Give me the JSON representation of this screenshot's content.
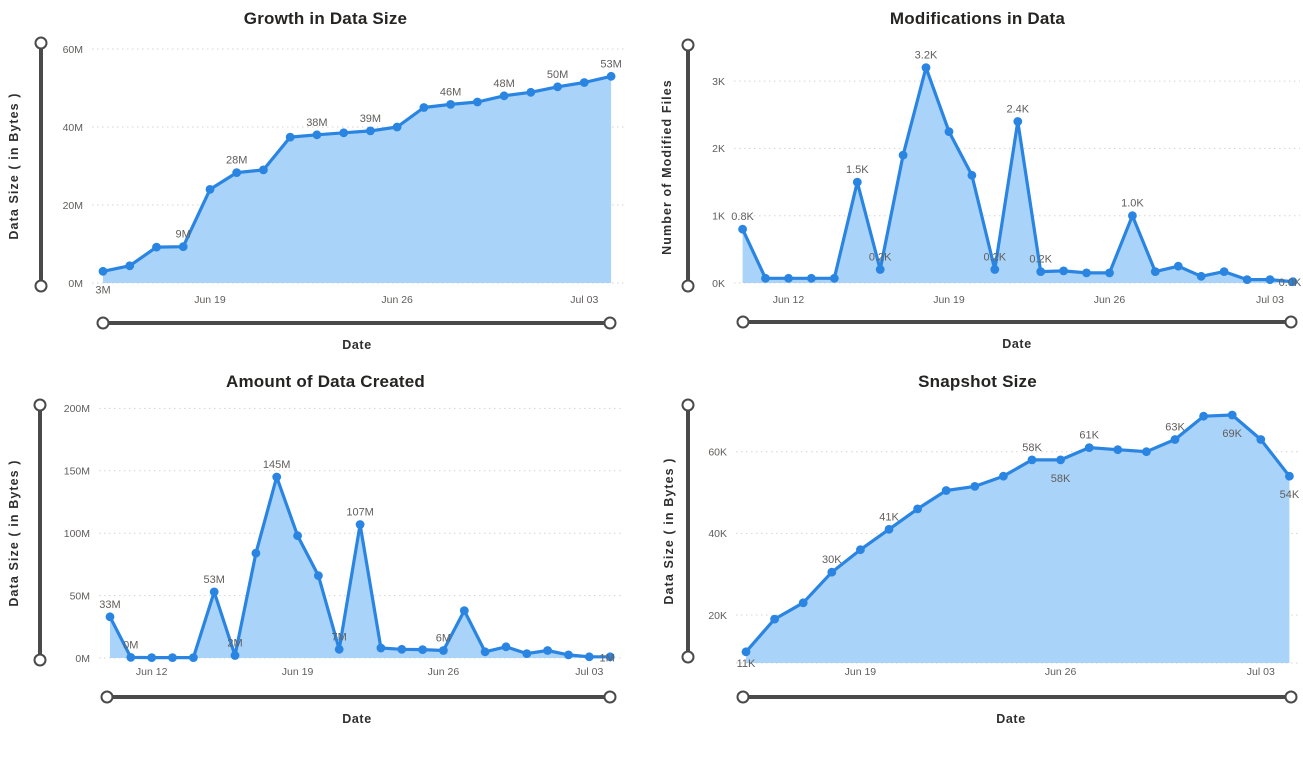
{
  "colors": {
    "line": "#2a85e2",
    "area_fill": "#a9d3f8",
    "marker": "#2a85e2",
    "grid": "#d6d4d2",
    "tick_label": "#605e5c",
    "data_label": "#605e5c",
    "title": "#252423",
    "axis_title": "#2f2e2d",
    "slider": "#4a4a4a",
    "background": "#ffffff"
  },
  "chart_data": [
    {
      "type": "area",
      "title": "Growth in Data Size",
      "xlabel": "Date",
      "ylabel": "Data Size ( in Bytes )",
      "unit": "M",
      "ylim": [
        0,
        60
      ],
      "grid": true,
      "legend": false,
      "x": [
        "Jun 15",
        "Jun 16",
        "Jun 17",
        "Jun 18",
        "Jun 19",
        "Jun 20",
        "Jun 21",
        "Jun 22",
        "Jun 23",
        "Jun 24",
        "Jun 25",
        "Jun 26",
        "Jun 27",
        "Jun 28",
        "Jun 29",
        "Jun 30",
        "Jul 01",
        "Jul 02",
        "Jul 03",
        "Jul 04"
      ],
      "values": [
        3,
        4.4,
        9.2,
        9.3,
        24,
        28.3,
        29,
        37.4,
        38,
        38.5,
        39,
        40,
        45,
        45.8,
        46.4,
        48,
        48.9,
        50.3,
        51.4,
        53
      ],
      "y_ticks": [
        {
          "v": 0,
          "label": "0M"
        },
        {
          "v": 20,
          "label": "20M"
        },
        {
          "v": 40,
          "label": "40M"
        },
        {
          "v": 60,
          "label": "60M"
        }
      ],
      "x_ticks": [
        {
          "i": 4,
          "label": "Jun 19"
        },
        {
          "i": 11,
          "label": "Jun 26"
        },
        {
          "i": 18,
          "label": "Jul 03"
        }
      ],
      "point_labels": [
        {
          "i": 0,
          "text": "3M",
          "pos": "below"
        },
        {
          "i": 3,
          "text": "9M",
          "pos": "above"
        },
        {
          "i": 5,
          "text": "28M",
          "pos": "above"
        },
        {
          "i": 8,
          "text": "38M",
          "pos": "above"
        },
        {
          "i": 10,
          "text": "39M",
          "pos": "above"
        },
        {
          "i": 13,
          "text": "46M",
          "pos": "above"
        },
        {
          "i": 15,
          "text": "48M",
          "pos": "above"
        },
        {
          "i": 17,
          "text": "50M",
          "pos": "above"
        },
        {
          "i": 19,
          "text": "53M",
          "pos": "above"
        }
      ]
    },
    {
      "type": "area",
      "title": "Modifications in Data",
      "xlabel": "Date",
      "ylabel": "Number of Modified Files",
      "unit": "K",
      "ylim": [
        0,
        3.2
      ],
      "grid": true,
      "legend": false,
      "x": [
        "Jun 10",
        "Jun 11",
        "Jun 12",
        "Jun 13",
        "Jun 14",
        "Jun 15",
        "Jun 16",
        "Jun 17",
        "Jun 18",
        "Jun 19",
        "Jun 20",
        "Jun 21",
        "Jun 22",
        "Jun 23",
        "Jun 24",
        "Jun 25",
        "Jun 26",
        "Jun 27",
        "Jun 28",
        "Jun 29",
        "Jun 30",
        "Jul 01",
        "Jul 02",
        "Jul 03",
        "Jul 04"
      ],
      "values": [
        0.8,
        0.07,
        0.07,
        0.07,
        0.07,
        1.5,
        0.2,
        1.9,
        3.2,
        2.25,
        1.6,
        0.2,
        2.4,
        0.17,
        0.18,
        0.15,
        0.15,
        1.0,
        0.17,
        0.25,
        0.1,
        0.17,
        0.05,
        0.05,
        0.02
      ],
      "y_ticks": [
        {
          "v": 0,
          "label": "0K"
        },
        {
          "v": 1,
          "label": "1K"
        },
        {
          "v": 2,
          "label": "2K"
        },
        {
          "v": 3,
          "label": "3K"
        }
      ],
      "x_ticks": [
        {
          "i": 2,
          "label": "Jun 12"
        },
        {
          "i": 9,
          "label": "Jun 19"
        },
        {
          "i": 16,
          "label": "Jun 26"
        },
        {
          "i": 23,
          "label": "Jul 03"
        }
      ],
      "point_labels": [
        {
          "i": 0,
          "text": "0.8K",
          "pos": "above"
        },
        {
          "i": 5,
          "text": "1.5K",
          "pos": "above"
        },
        {
          "i": 6,
          "text": "0.2K",
          "pos": "above"
        },
        {
          "i": 8,
          "text": "3.2K",
          "pos": "above"
        },
        {
          "i": 11,
          "text": "0.2K",
          "pos": "above"
        },
        {
          "i": 12,
          "text": "2.4K",
          "pos": "above"
        },
        {
          "i": 13,
          "text": "0.2K",
          "pos": "above"
        },
        {
          "i": 17,
          "text": "1.0K",
          "pos": "above"
        },
        {
          "i": 24,
          "text": "0.0K",
          "pos": "left"
        }
      ]
    },
    {
      "type": "area",
      "title": "Amount of Data Created",
      "xlabel": "Date",
      "ylabel": "Data Size ( in Bytes )",
      "unit": "M",
      "ylim": [
        0,
        200
      ],
      "grid": true,
      "legend": false,
      "x": [
        "Jun 10",
        "Jun 11",
        "Jun 12",
        "Jun 13",
        "Jun 14",
        "Jun 15",
        "Jun 16",
        "Jun 17",
        "Jun 18",
        "Jun 19",
        "Jun 20",
        "Jun 21",
        "Jun 22",
        "Jun 23",
        "Jun 24",
        "Jun 25",
        "Jun 26",
        "Jun 27",
        "Jun 28",
        "Jun 29",
        "Jun 30",
        "Jul 01",
        "Jul 02",
        "Jul 03",
        "Jul 04"
      ],
      "values": [
        33,
        0.5,
        0.3,
        0.3,
        0.3,
        53,
        2,
        84,
        145,
        98,
        66,
        7,
        107,
        8,
        7,
        6.7,
        6,
        38,
        5,
        9,
        3.5,
        6,
        2.5,
        1,
        1
      ],
      "y_ticks": [
        {
          "v": 0,
          "label": "0M"
        },
        {
          "v": 50,
          "label": "50M"
        },
        {
          "v": 100,
          "label": "100M"
        },
        {
          "v": 150,
          "label": "150M"
        },
        {
          "v": 200,
          "label": "200M"
        }
      ],
      "x_ticks": [
        {
          "i": 2,
          "label": "Jun 12"
        },
        {
          "i": 9,
          "label": "Jun 19"
        },
        {
          "i": 16,
          "label": "Jun 26"
        },
        {
          "i": 23,
          "label": "Jul 03"
        }
      ],
      "point_labels": [
        {
          "i": 0,
          "text": "33M",
          "pos": "above"
        },
        {
          "i": 1,
          "text": "0M",
          "pos": "above"
        },
        {
          "i": 5,
          "text": "53M",
          "pos": "above"
        },
        {
          "i": 6,
          "text": "2M",
          "pos": "above"
        },
        {
          "i": 8,
          "text": "145M",
          "pos": "above"
        },
        {
          "i": 11,
          "text": "7M",
          "pos": "above"
        },
        {
          "i": 12,
          "text": "107M",
          "pos": "above"
        },
        {
          "i": 16,
          "text": "6M",
          "pos": "above"
        },
        {
          "i": 24,
          "text": "1M",
          "pos": "left"
        }
      ]
    },
    {
      "type": "area",
      "title": "Snapshot Size",
      "xlabel": "Date",
      "ylabel": "Data Size ( in Bytes )",
      "unit": "K",
      "ylim": [
        8,
        72
      ],
      "grid": true,
      "legend": false,
      "x": [
        "Jun 15",
        "Jun 16",
        "Jun 17",
        "Jun 18",
        "Jun 19",
        "Jun 20",
        "Jun 21",
        "Jun 22",
        "Jun 23",
        "Jun 24",
        "Jun 25",
        "Jun 26",
        "Jun 27",
        "Jun 28",
        "Jun 29",
        "Jun 30",
        "Jul 01",
        "Jul 02",
        "Jul 03",
        "Jul 04"
      ],
      "values": [
        11,
        19,
        23,
        30.5,
        36,
        41,
        46,
        50.5,
        51.5,
        54,
        58,
        58,
        61,
        60.5,
        60,
        63,
        68.7,
        69,
        63,
        54
      ],
      "y_ticks": [
        {
          "v": 20,
          "label": "20K"
        },
        {
          "v": 40,
          "label": "40K"
        },
        {
          "v": 60,
          "label": "60K"
        }
      ],
      "x_ticks": [
        {
          "i": 4,
          "label": "Jun 19"
        },
        {
          "i": 11,
          "label": "Jun 26"
        },
        {
          "i": 18,
          "label": "Jul 03"
        }
      ],
      "point_labels": [
        {
          "i": 0,
          "text": "11K",
          "pos": "near-below"
        },
        {
          "i": 3,
          "text": "30K",
          "pos": "above"
        },
        {
          "i": 5,
          "text": "41K",
          "pos": "above"
        },
        {
          "i": 10,
          "text": "58K",
          "pos": "above"
        },
        {
          "i": 11,
          "text": "58K",
          "pos": "below"
        },
        {
          "i": 12,
          "text": "61K",
          "pos": "above"
        },
        {
          "i": 15,
          "text": "63K",
          "pos": "above"
        },
        {
          "i": 17,
          "text": "69K",
          "pos": "below"
        },
        {
          "i": 19,
          "text": "54K",
          "pos": "below"
        }
      ]
    }
  ]
}
